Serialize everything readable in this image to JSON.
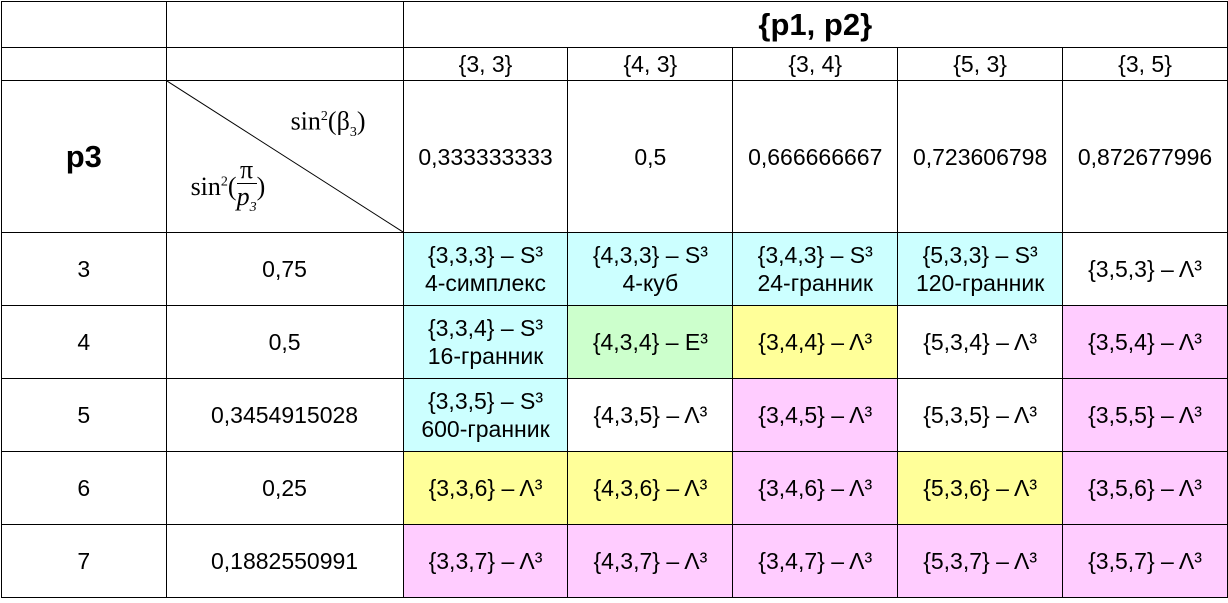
{
  "header": {
    "p1p2_label": "{p1, p2}",
    "p3_label": "p3",
    "sin_beta_func": "sin",
    "sin_beta_exp": "2",
    "sin_beta_arg": "β",
    "sin_beta_sub": "3",
    "sin_pi_func": "sin",
    "sin_pi_exp": "2",
    "sin_pi_num": "π",
    "sin_pi_den": "p",
    "sin_pi_den_sub": "3"
  },
  "columns": [
    {
      "label": "{3, 3}",
      "sin2beta": "0,333333333"
    },
    {
      "label": "{4, 3}",
      "sin2beta": "0,5"
    },
    {
      "label": "{3, 4}",
      "sin2beta": "0,666666667"
    },
    {
      "label": "{5, 3}",
      "sin2beta": "0,723606798"
    },
    {
      "label": "{3, 5}",
      "sin2beta": "0,872677996"
    }
  ],
  "rows": [
    {
      "p3": "3",
      "sin2pi": "0,75",
      "cells": [
        {
          "l1": "{3,3,3} – S³",
          "l2": "4-симплекс",
          "color": "cyan"
        },
        {
          "l1": "{4,3,3} – S³",
          "l2": "4-куб",
          "color": "cyan"
        },
        {
          "l1": "{3,4,3} – S³",
          "l2": "24-гранник",
          "color": "cyan"
        },
        {
          "l1": "{5,3,3} – S³",
          "l2": "120-гранник",
          "color": "cyan"
        },
        {
          "l1": "{3,5,3} – Λ³",
          "l2": "",
          "color": "white"
        }
      ]
    },
    {
      "p3": "4",
      "sin2pi": "0,5",
      "cells": [
        {
          "l1": "{3,3,4} – S³",
          "l2": "16-гранник",
          "color": "cyan"
        },
        {
          "l1": "{4,3,4} – E³",
          "l2": "",
          "color": "green"
        },
        {
          "l1": "{3,4,4} – Λ³",
          "l2": "",
          "color": "yellow"
        },
        {
          "l1": "{5,3,4} – Λ³",
          "l2": "",
          "color": "white"
        },
        {
          "l1": "{3,5,4} – Λ³",
          "l2": "",
          "color": "pink"
        }
      ]
    },
    {
      "p3": "5",
      "sin2pi": "0,3454915028",
      "cells": [
        {
          "l1": "{3,3,5} – S³",
          "l2": "600-гранник",
          "color": "cyan"
        },
        {
          "l1": "{4,3,5} – Λ³",
          "l2": "",
          "color": "white"
        },
        {
          "l1": "{3,4,5} – Λ³",
          "l2": "",
          "color": "pink"
        },
        {
          "l1": "{5,3,5} – Λ³",
          "l2": "",
          "color": "white"
        },
        {
          "l1": "{3,5,5} – Λ³",
          "l2": "",
          "color": "pink"
        }
      ]
    },
    {
      "p3": "6",
      "sin2pi": "0,25",
      "cells": [
        {
          "l1": "{3,3,6} – Λ³",
          "l2": "",
          "color": "yellow"
        },
        {
          "l1": "{4,3,6} – Λ³",
          "l2": "",
          "color": "yellow"
        },
        {
          "l1": "{3,4,6} – Λ³",
          "l2": "",
          "color": "pink"
        },
        {
          "l1": "{5,3,6} – Λ³",
          "l2": "",
          "color": "yellow"
        },
        {
          "l1": "{3,5,6} – Λ³",
          "l2": "",
          "color": "pink"
        }
      ]
    },
    {
      "p3": "7",
      "sin2pi": "0,1882550991",
      "cells": [
        {
          "l1": "{3,3,7} – Λ³",
          "l2": "",
          "color": "pink"
        },
        {
          "l1": "{4,3,7} – Λ³",
          "l2": "",
          "color": "pink"
        },
        {
          "l1": "{3,4,7} – Λ³",
          "l2": "",
          "color": "pink"
        },
        {
          "l1": "{5,3,7} – Λ³",
          "l2": "",
          "color": "pink"
        },
        {
          "l1": "{3,5,7} – Λ³",
          "l2": "",
          "color": "pink"
        }
      ]
    }
  ]
}
